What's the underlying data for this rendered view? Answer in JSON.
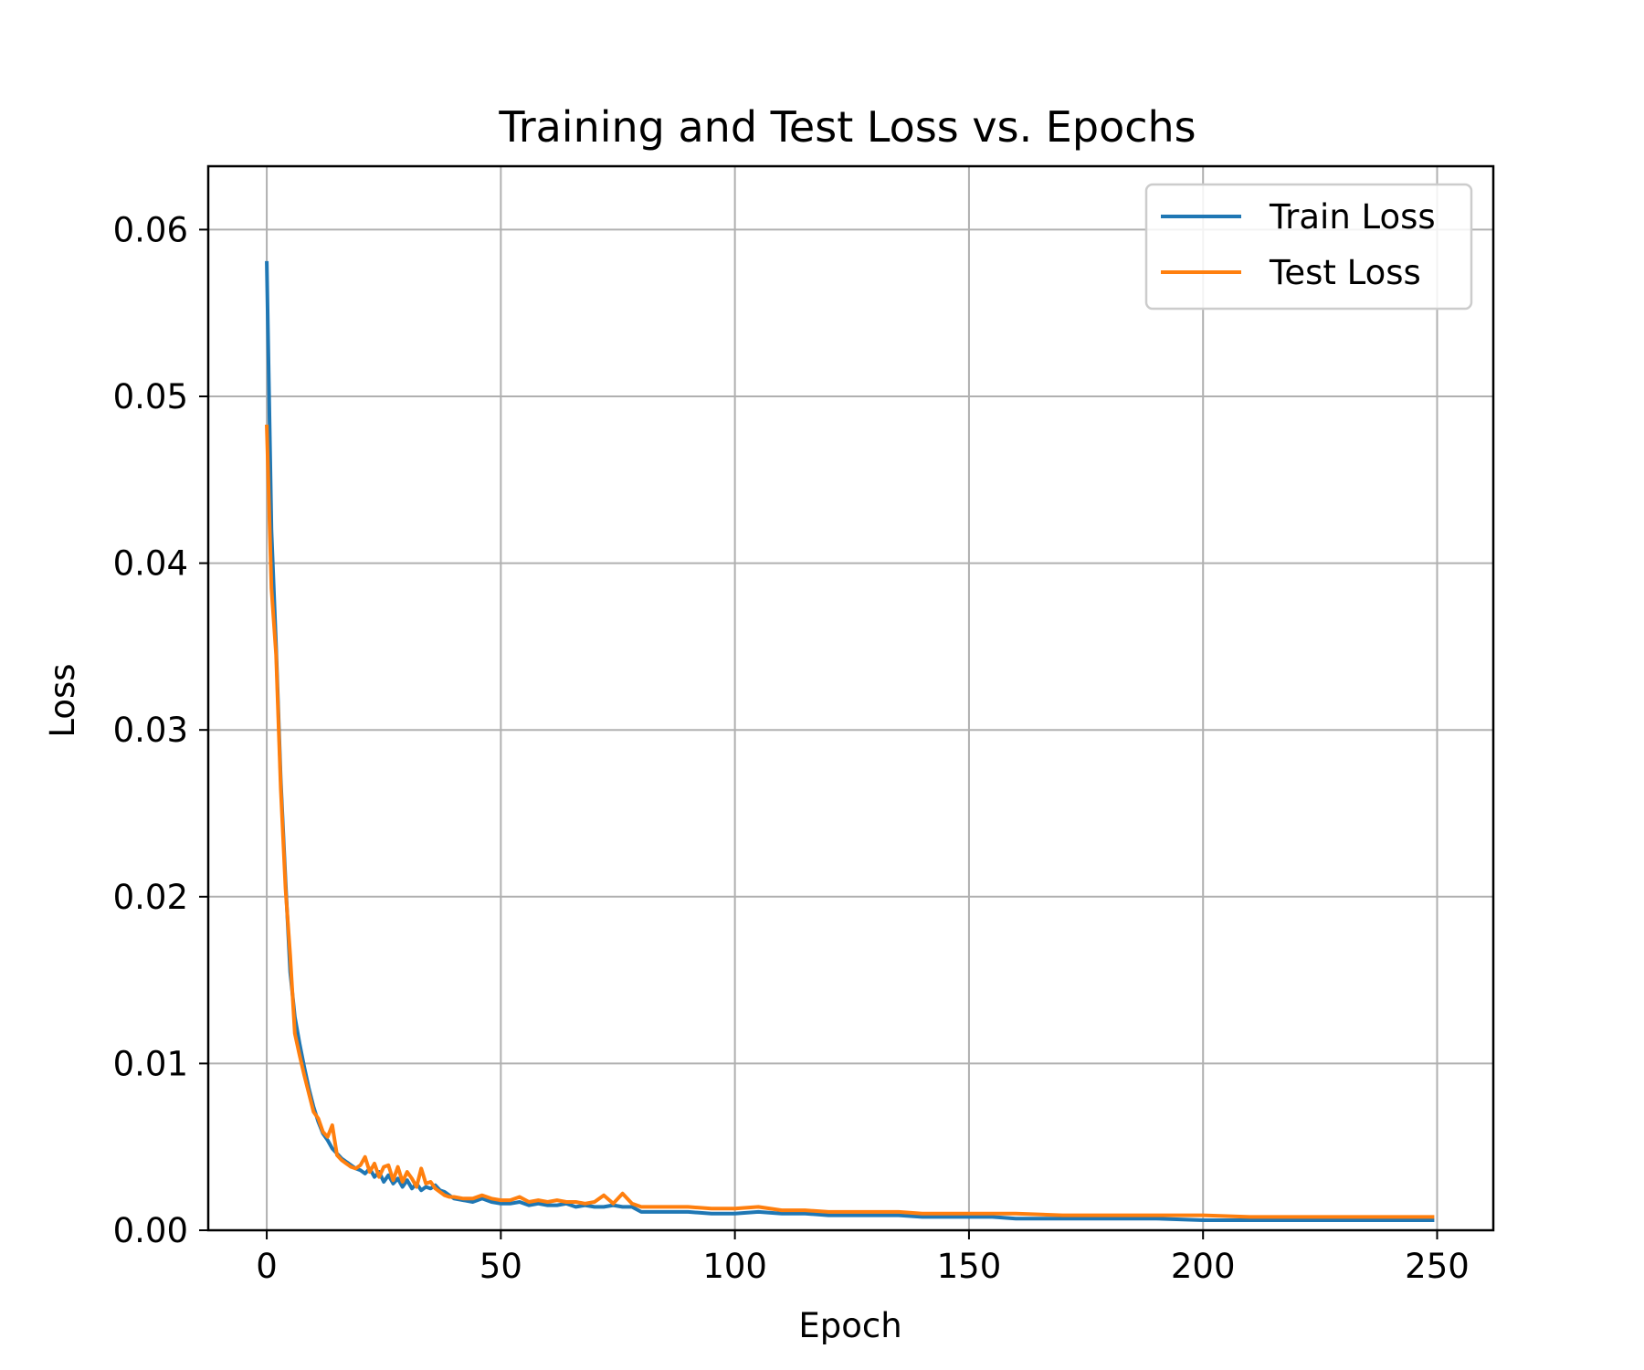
{
  "chart_data": {
    "type": "line",
    "title": "Training and Test Loss vs. Epochs",
    "xlabel": "Epoch",
    "ylabel": "Loss",
    "xlim": [
      -12.5,
      262
    ],
    "ylim": [
      0,
      0.0638
    ],
    "xticks": [
      0,
      50,
      100,
      150,
      200,
      250
    ],
    "yticks": [
      0.0,
      0.01,
      0.02,
      0.03,
      0.04,
      0.05,
      0.06
    ],
    "xtick_labels": [
      "0",
      "50",
      "100",
      "150",
      "200",
      "250"
    ],
    "ytick_labels": [
      "0.00",
      "0.01",
      "0.02",
      "0.03",
      "0.04",
      "0.05",
      "0.06"
    ],
    "grid": true,
    "legend_position": "top-right",
    "series": [
      {
        "name": "Train Loss",
        "color": "#1f77b4",
        "x": [
          0,
          1,
          2,
          3,
          4,
          5,
          6,
          7,
          8,
          9,
          10,
          11,
          12,
          13,
          14,
          15,
          16,
          17,
          18,
          19,
          20,
          21,
          22,
          23,
          24,
          25,
          26,
          27,
          28,
          29,
          30,
          31,
          32,
          33,
          34,
          35,
          36,
          37,
          38,
          39,
          40,
          42,
          44,
          46,
          48,
          50,
          52,
          54,
          56,
          58,
          60,
          62,
          64,
          66,
          68,
          70,
          72,
          74,
          76,
          78,
          80,
          85,
          90,
          95,
          100,
          105,
          110,
          115,
          120,
          125,
          130,
          135,
          140,
          145,
          150,
          155,
          160,
          170,
          180,
          190,
          200,
          210,
          220,
          230,
          240,
          249
        ],
        "y": [
          0.058,
          0.042,
          0.035,
          0.027,
          0.021,
          0.0155,
          0.0128,
          0.0112,
          0.0098,
          0.0085,
          0.0074,
          0.0065,
          0.0058,
          0.0054,
          0.0049,
          0.0046,
          0.0043,
          0.0041,
          0.0039,
          0.0037,
          0.0036,
          0.0034,
          0.0037,
          0.0032,
          0.0035,
          0.0029,
          0.0033,
          0.0028,
          0.0031,
          0.0026,
          0.003,
          0.0025,
          0.0028,
          0.0024,
          0.0026,
          0.0025,
          0.0027,
          0.0024,
          0.0023,
          0.0021,
          0.0019,
          0.0018,
          0.0017,
          0.0019,
          0.0017,
          0.0016,
          0.0016,
          0.0017,
          0.0015,
          0.0016,
          0.0015,
          0.0015,
          0.0016,
          0.0014,
          0.0015,
          0.0014,
          0.0014,
          0.0015,
          0.0014,
          0.0014,
          0.0011,
          0.0011,
          0.0011,
          0.001,
          0.001,
          0.0011,
          0.001,
          0.001,
          0.0009,
          0.0009,
          0.0009,
          0.0009,
          0.0008,
          0.0008,
          0.0008,
          0.0008,
          0.0007,
          0.0007,
          0.0007,
          0.0007,
          0.0006,
          0.0006,
          0.0006,
          0.0006,
          0.0006,
          0.0006
        ]
      },
      {
        "name": "Test Loss",
        "color": "#ff7f0e",
        "x": [
          0,
          1,
          2,
          3,
          4,
          5,
          6,
          7,
          8,
          9,
          10,
          11,
          12,
          13,
          14,
          15,
          16,
          17,
          18,
          19,
          20,
          21,
          22,
          23,
          24,
          25,
          26,
          27,
          28,
          29,
          30,
          31,
          32,
          33,
          34,
          35,
          36,
          37,
          38,
          39,
          40,
          42,
          44,
          46,
          48,
          50,
          52,
          54,
          56,
          58,
          60,
          62,
          64,
          66,
          68,
          70,
          72,
          74,
          76,
          78,
          80,
          85,
          90,
          95,
          100,
          105,
          110,
          115,
          120,
          125,
          130,
          135,
          140,
          145,
          150,
          155,
          160,
          170,
          180,
          190,
          200,
          210,
          220,
          230,
          240,
          249
        ],
        "y": [
          0.0482,
          0.0385,
          0.0345,
          0.0265,
          0.0205,
          0.0165,
          0.0118,
          0.0105,
          0.0093,
          0.0082,
          0.0071,
          0.0067,
          0.0059,
          0.0056,
          0.0063,
          0.0045,
          0.0042,
          0.004,
          0.0038,
          0.0037,
          0.0039,
          0.0044,
          0.0035,
          0.004,
          0.0032,
          0.0038,
          0.0039,
          0.003,
          0.0038,
          0.0029,
          0.0035,
          0.0031,
          0.0026,
          0.0037,
          0.0028,
          0.0029,
          0.0025,
          0.0023,
          0.0021,
          0.002,
          0.002,
          0.0019,
          0.0019,
          0.0021,
          0.0019,
          0.0018,
          0.0018,
          0.002,
          0.0017,
          0.0018,
          0.0017,
          0.0018,
          0.0017,
          0.0017,
          0.0016,
          0.0017,
          0.0021,
          0.0016,
          0.0022,
          0.0016,
          0.0014,
          0.0014,
          0.0014,
          0.0013,
          0.0013,
          0.0014,
          0.0012,
          0.0012,
          0.0011,
          0.0011,
          0.0011,
          0.0011,
          0.001,
          0.001,
          0.001,
          0.001,
          0.001,
          0.0009,
          0.0009,
          0.0009,
          0.0009,
          0.0008,
          0.0008,
          0.0008,
          0.0008,
          0.0008
        ]
      }
    ]
  }
}
